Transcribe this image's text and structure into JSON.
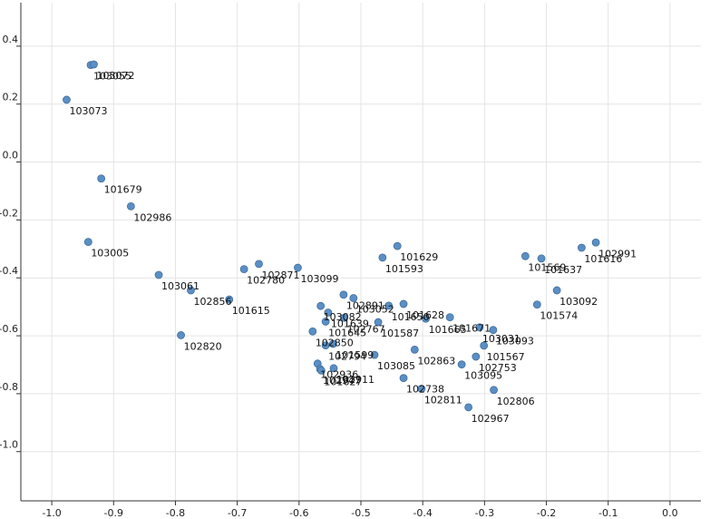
{
  "chart_data": {
    "type": "scatter",
    "title": "",
    "xlabel": "",
    "ylabel": "",
    "xlim": [
      -1.05,
      0.05
    ],
    "ylim": [
      -1.17,
      0.55
    ],
    "x_ticks": [
      -1.0,
      -0.9,
      -0.8,
      -0.7,
      -0.6,
      -0.5,
      -0.4,
      -0.3,
      -0.2,
      -0.1,
      0.0
    ],
    "x_tick_labels": [
      "-1.0",
      "-0.9",
      "-0.8",
      "-0.7",
      "-0.6",
      "-0.5",
      "-0.4",
      "-0.3",
      "-0.2",
      "-0.1",
      "0.0"
    ],
    "y_ticks": [
      0.4,
      0.2,
      0.0,
      -0.2,
      -0.4,
      -0.6,
      -0.8,
      -1.0
    ],
    "y_tick_labels": [
      "0.4",
      "0.2",
      "0.0",
      "-0.2",
      "-0.4",
      "-0.6",
      "-0.8",
      "-1.0"
    ],
    "grid": true,
    "point_color": "#5b8fc4",
    "points": [
      {
        "label": "103055",
        "x": -0.937,
        "y": 0.335
      },
      {
        "label": "103072",
        "x": -0.932,
        "y": 0.337
      },
      {
        "label": "103073",
        "x": -0.976,
        "y": 0.215
      },
      {
        "label": "101679",
        "x": -0.92,
        "y": -0.057
      },
      {
        "label": "102986",
        "x": -0.872,
        "y": -0.153
      },
      {
        "label": "103005",
        "x": -0.941,
        "y": -0.276
      },
      {
        "label": "103061",
        "x": -0.827,
        "y": -0.39
      },
      {
        "label": "102856",
        "x": -0.775,
        "y": -0.443
      },
      {
        "label": "101615",
        "x": -0.713,
        "y": -0.475
      },
      {
        "label": "102820",
        "x": -0.791,
        "y": -0.598
      },
      {
        "label": "102780",
        "x": -0.689,
        "y": -0.37
      },
      {
        "label": "102871",
        "x": -0.665,
        "y": -0.352
      },
      {
        "label": "103099",
        "x": -0.602,
        "y": -0.365
      },
      {
        "label": "103082",
        "x": -0.565,
        "y": -0.497
      },
      {
        "label": "102891",
        "x": -0.528,
        "y": -0.458
      },
      {
        "label": "103052",
        "x": -0.512,
        "y": -0.47
      },
      {
        "label": "102767",
        "x": -0.527,
        "y": -0.538
      },
      {
        "label": "101639",
        "x": -0.553,
        "y": -0.52
      },
      {
        "label": "101645",
        "x": -0.557,
        "y": -0.551
      },
      {
        "label": "102850",
        "x": -0.578,
        "y": -0.585
      },
      {
        "label": "102794",
        "x": -0.557,
        "y": -0.633
      },
      {
        "label": "101599",
        "x": -0.545,
        "y": -0.628
      },
      {
        "label": "102936",
        "x": -0.57,
        "y": -0.696
      },
      {
        "label": "102947",
        "x": -0.566,
        "y": -0.715
      },
      {
        "label": "101627",
        "x": -0.564,
        "y": -0.72
      },
      {
        "label": "102911",
        "x": -0.544,
        "y": -0.712
      },
      {
        "label": "101629",
        "x": -0.441,
        "y": -0.29
      },
      {
        "label": "101593",
        "x": -0.465,
        "y": -0.33
      },
      {
        "label": "101628",
        "x": -0.431,
        "y": -0.49
      },
      {
        "label": "101650",
        "x": -0.455,
        "y": -0.496
      },
      {
        "label": "101587",
        "x": -0.472,
        "y": -0.553
      },
      {
        "label": "101665",
        "x": -0.395,
        "y": -0.541
      },
      {
        "label": "103085",
        "x": -0.478,
        "y": -0.666
      },
      {
        "label": "102863",
        "x": -0.413,
        "y": -0.648
      },
      {
        "label": "102738",
        "x": -0.431,
        "y": -0.746
      },
      {
        "label": "102811",
        "x": -0.402,
        "y": -0.783
      },
      {
        "label": "101671",
        "x": -0.356,
        "y": -0.536
      },
      {
        "label": "103031",
        "x": -0.308,
        "y": -0.571
      },
      {
        "label": "103093",
        "x": -0.286,
        "y": -0.58
      },
      {
        "label": "101567",
        "x": -0.301,
        "y": -0.634
      },
      {
        "label": "102753",
        "x": -0.314,
        "y": -0.672
      },
      {
        "label": "103095",
        "x": -0.337,
        "y": -0.699
      },
      {
        "label": "102806",
        "x": -0.285,
        "y": -0.787
      },
      {
        "label": "102967",
        "x": -0.326,
        "y": -0.847
      },
      {
        "label": "101569",
        "x": -0.234,
        "y": -0.325
      },
      {
        "label": "101637",
        "x": -0.208,
        "y": -0.333
      },
      {
        "label": "101574",
        "x": -0.215,
        "y": -0.492
      },
      {
        "label": "103092",
        "x": -0.183,
        "y": -0.443
      },
      {
        "label": "101616",
        "x": -0.143,
        "y": -0.296
      },
      {
        "label": "102991",
        "x": -0.12,
        "y": -0.278
      }
    ]
  }
}
